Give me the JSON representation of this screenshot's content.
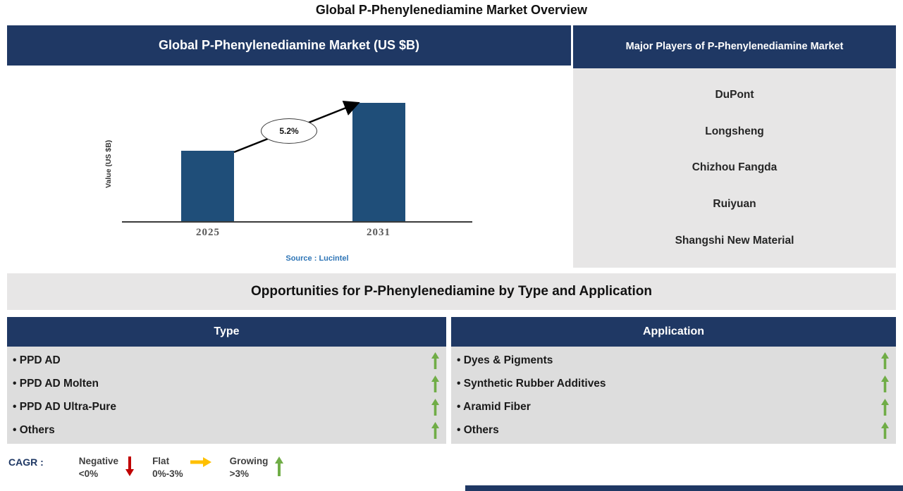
{
  "page_title": "Global P-Phenylenediamine Market Overview",
  "colors": {
    "navy": "#1F3864",
    "bar_blue": "#1F4E79",
    "panel_gray": "#E7E6E6",
    "list_gray": "#DDDDDD",
    "growing_green": "#70AD47",
    "negative_red": "#C00000",
    "flat_yellow": "#FFC000",
    "source_blue": "#2E75B6"
  },
  "market_chart": {
    "header": "Global P-Phenylenediamine Market (US $B)",
    "source": "Source : Lucintel"
  },
  "chart_data": {
    "type": "bar",
    "title": "Global P-Phenylenediamine Market (US $B)",
    "ylabel": "Value (US $B)",
    "categories": [
      "2025",
      "2031"
    ],
    "values": [
      0.6,
      1.0
    ],
    "values_unit": "relative (no axis scale shown)",
    "growth_label": "5.2%",
    "annotation": "CAGR arrow from 2025 bar to 2031 bar labeled 5.2%",
    "source": "Source : Lucintel",
    "bar_color": "#1F4E79",
    "legend_position": "none",
    "grid": false
  },
  "players_panel": {
    "header": "Major Players of P-Phenylenediamine Market",
    "players": [
      "DuPont",
      "Longsheng",
      "Chizhou Fangda",
      "Ruiyuan",
      "Shangshi New Material"
    ]
  },
  "opportunities": {
    "header": "Opportunities for P-Phenylenediamine by Type and Application",
    "type": {
      "header": "Type",
      "items": [
        {
          "label": "PPD AD",
          "trend": "growing"
        },
        {
          "label": "PPD AD Molten",
          "trend": "growing"
        },
        {
          "label": "PPD AD Ultra-Pure",
          "trend": "growing"
        },
        {
          "label": "Others",
          "trend": "growing"
        }
      ]
    },
    "application": {
      "header": "Application",
      "items": [
        {
          "label": "Dyes & Pigments",
          "trend": "growing"
        },
        {
          "label": "Synthetic Rubber Additives",
          "trend": "growing"
        },
        {
          "label": "Aramid Fiber",
          "trend": "growing"
        },
        {
          "label": "Others",
          "trend": "growing"
        }
      ]
    }
  },
  "legend": {
    "title": "CAGR :",
    "items": [
      {
        "label": "Negative",
        "range": "<0%",
        "direction": "down",
        "color": "#C00000"
      },
      {
        "label": "Flat",
        "range": "0%-3%",
        "direction": "right",
        "color": "#FFC000"
      },
      {
        "label": "Growing",
        "range": ">3%",
        "direction": "up",
        "color": "#70AD47"
      }
    ]
  }
}
